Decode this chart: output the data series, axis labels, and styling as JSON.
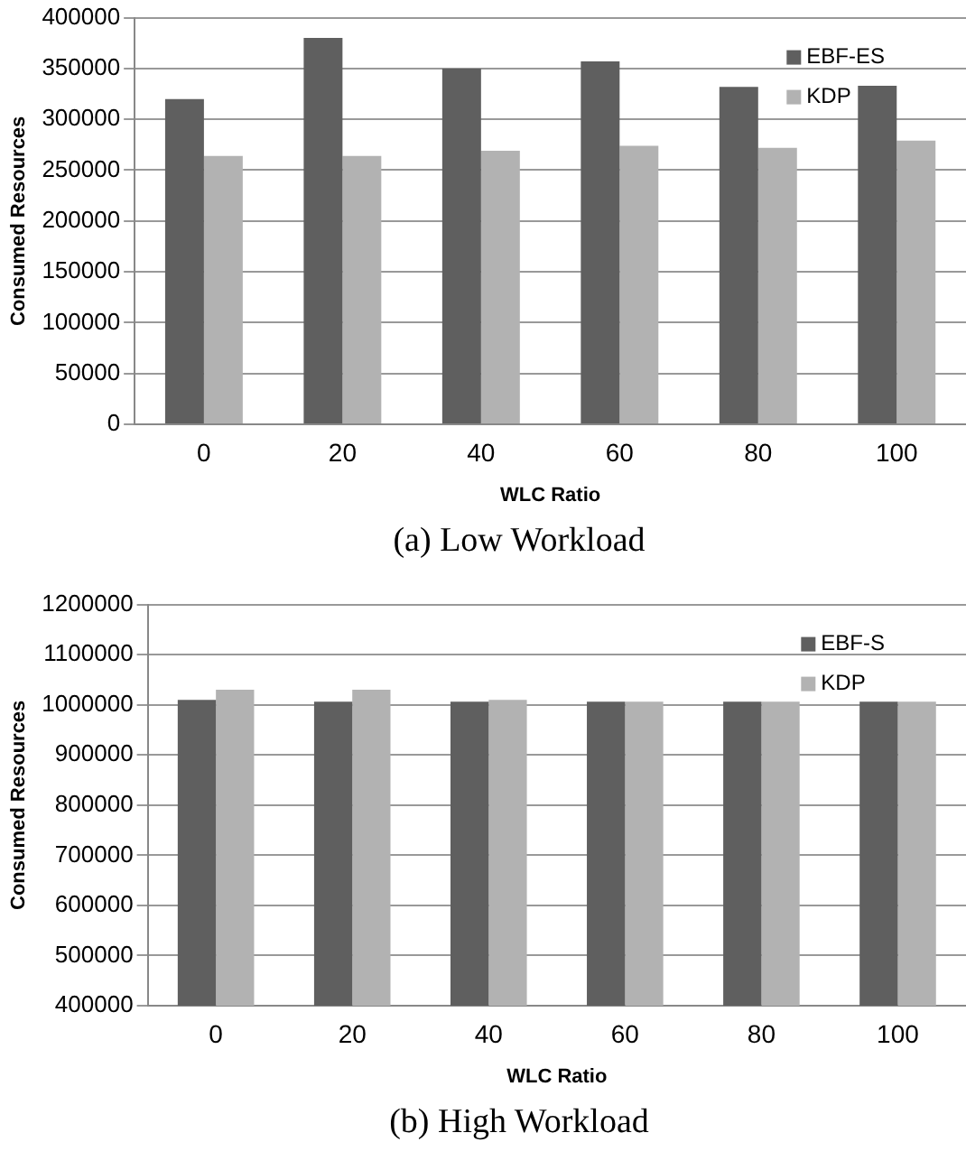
{
  "chart_data": [
    {
      "type": "bar",
      "title": "(a) Low Workload",
      "xlabel": "WLC Ratio",
      "ylabel": "Consumed Resources",
      "categories": [
        "0",
        "20",
        "40",
        "60",
        "80",
        "100"
      ],
      "series": [
        {
          "name": "EBF-ES",
          "color": "#5f5f5f",
          "values": [
            320000,
            380000,
            350000,
            357000,
            332000,
            333000
          ]
        },
        {
          "name": "KDP",
          "color": "#b2b2b2",
          "values": [
            264000,
            264000,
            269000,
            274000,
            272000,
            279000
          ]
        }
      ],
      "ylim": [
        0,
        400000
      ],
      "yticks": [
        0,
        50000,
        100000,
        150000,
        200000,
        250000,
        300000,
        350000,
        400000
      ],
      "grid": "y",
      "legend": "top right"
    },
    {
      "type": "bar",
      "title": "(b) High Workload",
      "xlabel": "WLC Ratio",
      "ylabel": "Consumed Resources",
      "categories": [
        "0",
        "20",
        "40",
        "60",
        "80",
        "100"
      ],
      "series": [
        {
          "name": "EBF-S",
          "color": "#5f5f5f",
          "values": [
            1010000,
            1006000,
            1006000,
            1006000,
            1006000,
            1006000
          ]
        },
        {
          "name": "KDP",
          "color": "#b2b2b2",
          "values": [
            1030000,
            1030000,
            1010000,
            1006000,
            1006000,
            1006000
          ]
        }
      ],
      "ylim": [
        400000,
        1200000
      ],
      "yticks": [
        400000,
        500000,
        600000,
        700000,
        800000,
        900000,
        1000000,
        1100000,
        1200000
      ],
      "grid": "y",
      "legend": "top right"
    }
  ]
}
